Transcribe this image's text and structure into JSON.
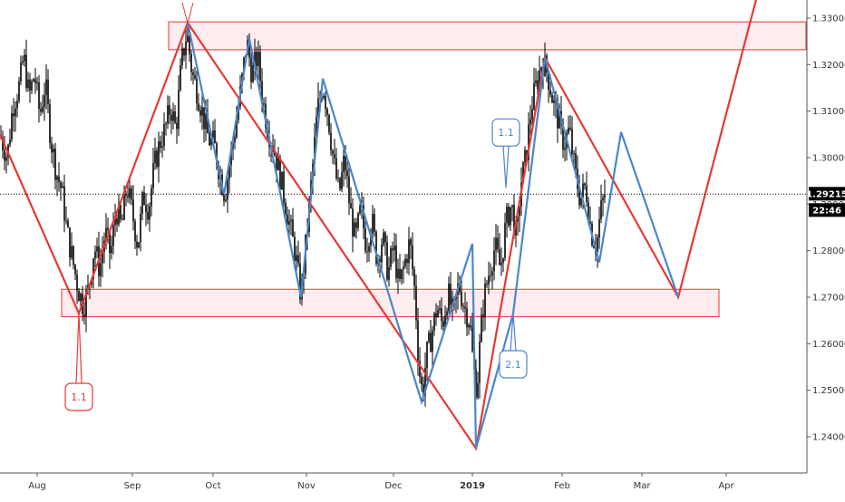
{
  "chart_data": {
    "type": "line",
    "title": "",
    "xlabel": "",
    "ylabel": "",
    "x_tick_labels": [
      "Aug",
      "Sep",
      "Oct",
      "Nov",
      "Dec",
      "2019",
      "Feb",
      "Mar",
      "Apr"
    ],
    "x_tick_positions": [
      41,
      146,
      235,
      338,
      434,
      521,
      620,
      708,
      801
    ],
    "y_ticks": [
      1.24,
      1.25,
      1.26,
      1.27,
      1.28,
      1.29,
      1.3,
      1.31,
      1.32,
      1.33
    ],
    "y_tick_labels": [
      "1.24000",
      "1.25000",
      "1.26000",
      "1.27000",
      "1.28000",
      "1.29000",
      "1.30000",
      "1.31000",
      "1.32000",
      "1.33000"
    ],
    "ylim": [
      1.2333,
      1.3335
    ],
    "last_price": "1.29215",
    "last_price_value": 1.29215,
    "countdown": "22:46",
    "price_series_description_free": true,
    "price_path": [
      [
        0,
        1.305
      ],
      [
        8,
        1.3
      ],
      [
        14,
        1.311
      ],
      [
        22,
        1.316
      ],
      [
        26,
        1.322
      ],
      [
        32,
        1.313
      ],
      [
        38,
        1.318
      ],
      [
        44,
        1.309
      ],
      [
        50,
        1.316
      ],
      [
        56,
        1.304
      ],
      [
        62,
        1.297
      ],
      [
        68,
        1.293
      ],
      [
        74,
        1.284
      ],
      [
        80,
        1.278
      ],
      [
        86,
        1.272
      ],
      [
        92,
        1.268
      ],
      [
        98,
        1.272
      ],
      [
        104,
        1.281
      ],
      [
        110,
        1.276
      ],
      [
        116,
        1.284
      ],
      [
        122,
        1.279
      ],
      [
        128,
        1.289
      ],
      [
        134,
        1.285
      ],
      [
        140,
        1.294
      ],
      [
        146,
        1.288
      ],
      [
        152,
        1.281
      ],
      [
        158,
        1.292
      ],
      [
        164,
        1.289
      ],
      [
        170,
        1.298
      ],
      [
        176,
        1.303
      ],
      [
        182,
        1.306
      ],
      [
        188,
        1.311
      ],
      [
        194,
        1.306
      ],
      [
        200,
        1.32
      ],
      [
        206,
        1.327
      ],
      [
        212,
        1.318
      ],
      [
        218,
        1.314
      ],
      [
        224,
        1.309
      ],
      [
        230,
        1.304
      ],
      [
        236,
        1.303
      ],
      [
        242,
        1.297
      ],
      [
        248,
        1.292
      ],
      [
        254,
        1.3
      ],
      [
        260,
        1.307
      ],
      [
        266,
        1.315
      ],
      [
        272,
        1.325
      ],
      [
        278,
        1.318
      ],
      [
        284,
        1.322
      ],
      [
        290,
        1.312
      ],
      [
        296,
        1.306
      ],
      [
        302,
        1.302
      ],
      [
        308,
        1.297
      ],
      [
        314,
        1.291
      ],
      [
        320,
        1.285
      ],
      [
        326,
        1.279
      ],
      [
        332,
        1.27
      ],
      [
        338,
        1.283
      ],
      [
        344,
        1.296
      ],
      [
        350,
        1.31
      ],
      [
        356,
        1.316
      ],
      [
        362,
        1.309
      ],
      [
        368,
        1.299
      ],
      [
        374,
        1.292
      ],
      [
        380,
        1.3
      ],
      [
        386,
        1.289
      ],
      [
        392,
        1.282
      ],
      [
        398,
        1.289
      ],
      [
        404,
        1.281
      ],
      [
        410,
        1.287
      ],
      [
        416,
        1.278
      ],
      [
        422,
        1.283
      ],
      [
        428,
        1.275
      ],
      [
        434,
        1.281
      ],
      [
        440,
        1.272
      ],
      [
        446,
        1.277
      ],
      [
        452,
        1.282
      ],
      [
        458,
        1.27
      ],
      [
        462,
        1.255
      ],
      [
        466,
        1.249
      ],
      [
        470,
        1.257
      ],
      [
        476,
        1.262
      ],
      [
        482,
        1.268
      ],
      [
        488,
        1.264
      ],
      [
        494,
        1.271
      ],
      [
        500,
        1.266
      ],
      [
        506,
        1.273
      ],
      [
        512,
        1.268
      ],
      [
        518,
        1.265
      ],
      [
        522,
        1.255
      ],
      [
        526,
        1.25
      ],
      [
        530,
        1.262
      ],
      [
        534,
        1.27
      ],
      [
        540,
        1.276
      ],
      [
        546,
        1.281
      ],
      [
        552,
        1.276
      ],
      [
        558,
        1.286
      ],
      [
        564,
        1.29
      ],
      [
        570,
        1.282
      ],
      [
        574,
        1.294
      ],
      [
        580,
        1.3
      ],
      [
        586,
        1.311
      ],
      [
        592,
        1.316
      ],
      [
        598,
        1.321
      ],
      [
        604,
        1.318
      ],
      [
        610,
        1.312
      ],
      [
        616,
        1.308
      ],
      [
        622,
        1.303
      ],
      [
        628,
        1.306
      ],
      [
        634,
        1.297
      ],
      [
        640,
        1.291
      ],
      [
        646,
        1.294
      ],
      [
        652,
        1.284
      ],
      [
        658,
        1.281
      ],
      [
        662,
        1.288
      ],
      [
        668,
        1.293
      ]
    ],
    "price_noise_seed": 7,
    "red_zigzag": [
      [
        0,
        1.305
      ],
      [
        87,
        1.2665
      ],
      [
        207,
        1.329
      ],
      [
        525,
        1.2375
      ],
      [
        601,
        1.3215
      ],
      [
        748,
        1.27
      ],
      [
        836,
        1.3355
      ]
    ],
    "blue_zigzag": [
      [
        207,
        1.329
      ],
      [
        247,
        1.292
      ],
      [
        275,
        1.3255
      ],
      [
        332,
        1.27
      ],
      [
        356,
        1.317
      ],
      [
        465,
        1.2475
      ],
      [
        521,
        1.2815
      ],
      [
        525,
        1.2375
      ],
      [
        566,
        1.2665
      ],
      [
        601,
        1.3215
      ],
      [
        661,
        1.2775
      ],
      [
        685,
        1.3055
      ],
      [
        748,
        1.27
      ]
    ],
    "zones": [
      {
        "x1": 186,
        "x2": 889,
        "y_low": 1.3232,
        "y_high": 1.3292
      },
      {
        "x1": 68,
        "x2": 793,
        "y_low": 1.2658,
        "y_high": 1.2717
      }
    ],
    "annotations": [
      {
        "text": "1.1",
        "color": "#e53935",
        "anchor_x": 87,
        "anchor_y": 1.2665,
        "label_y": 1.2515,
        "side": "below"
      },
      {
        "text": "1.1",
        "color": "#4a86c8",
        "anchor_x": 558,
        "anchor_y": 1.2935,
        "label_y": 1.3025,
        "side": "above"
      },
      {
        "text": "2.1",
        "color": "#4a86c8",
        "anchor_x": 566,
        "anchor_y": 1.2665,
        "label_y": 1.2585,
        "side": "below"
      }
    ],
    "marker_cross": {
      "x": 207,
      "y": 1.329
    },
    "colors": {
      "red": "#e53935",
      "blue": "#4a86c8",
      "zone_fill": "rgba(255,200,210,0.35)",
      "zone_stroke": "#e53935",
      "candle": "#000000",
      "price_tag_bg": "#000000",
      "price_tag_fg": "#ffffff"
    }
  }
}
